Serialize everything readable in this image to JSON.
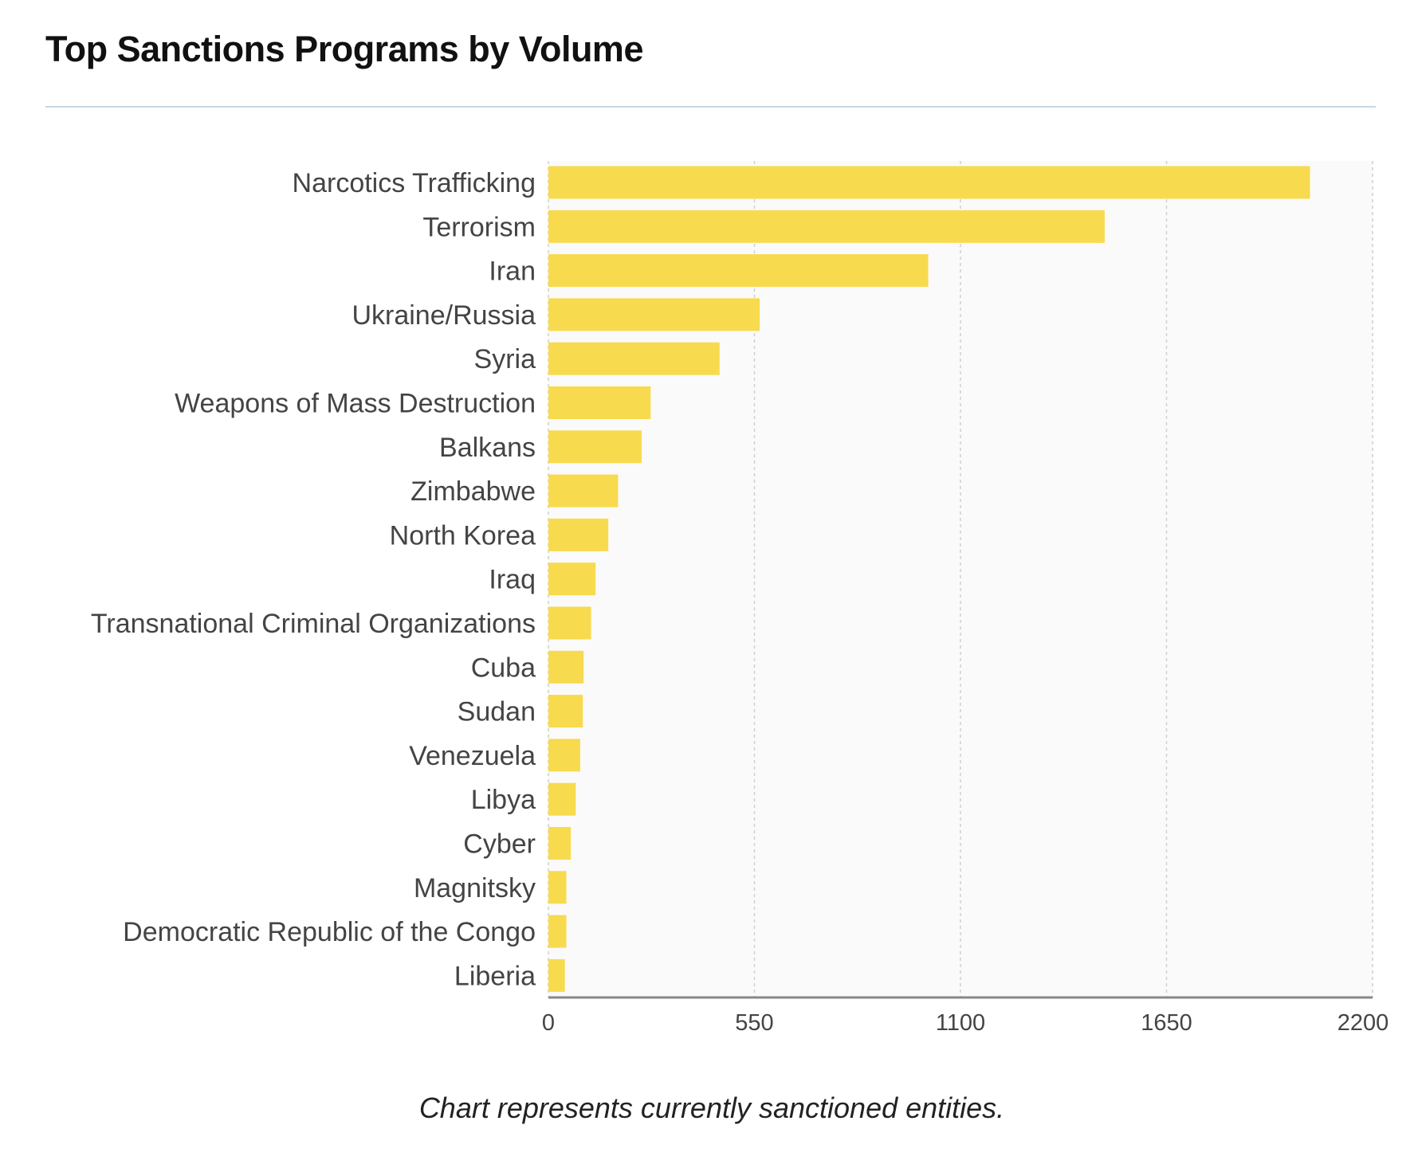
{
  "chart_data": {
    "type": "bar",
    "orientation": "horizontal",
    "title": "Top Sanctions Programs by Volume",
    "caption": "Chart represents currently sanctioned entities.",
    "categories": [
      "Narcotics Trafficking",
      "Terrorism",
      "Iran",
      "Ukraine/Russia",
      "Syria",
      "Weapons of Mass Destruction",
      "Balkans",
      "Zimbabwe",
      "North Korea",
      "Iraq",
      "Transnational Criminal Organizations",
      "Cuba",
      "Sudan",
      "Venezuela",
      "Libya",
      "Cyber",
      "Magnitsky",
      "Democratic Republic of the Congo",
      "Liberia"
    ],
    "values": [
      2033,
      1485,
      1014,
      564,
      457,
      273,
      249,
      186,
      160,
      126,
      114,
      94,
      92,
      85,
      73,
      60,
      48,
      48,
      44
    ],
    "xlim": [
      0,
      2200
    ],
    "xticks": [
      "0",
      "550",
      "1100",
      "1650",
      "2200"
    ],
    "grid": true,
    "bar_color": "#f8da4e",
    "plot_background": "#fafafa"
  }
}
